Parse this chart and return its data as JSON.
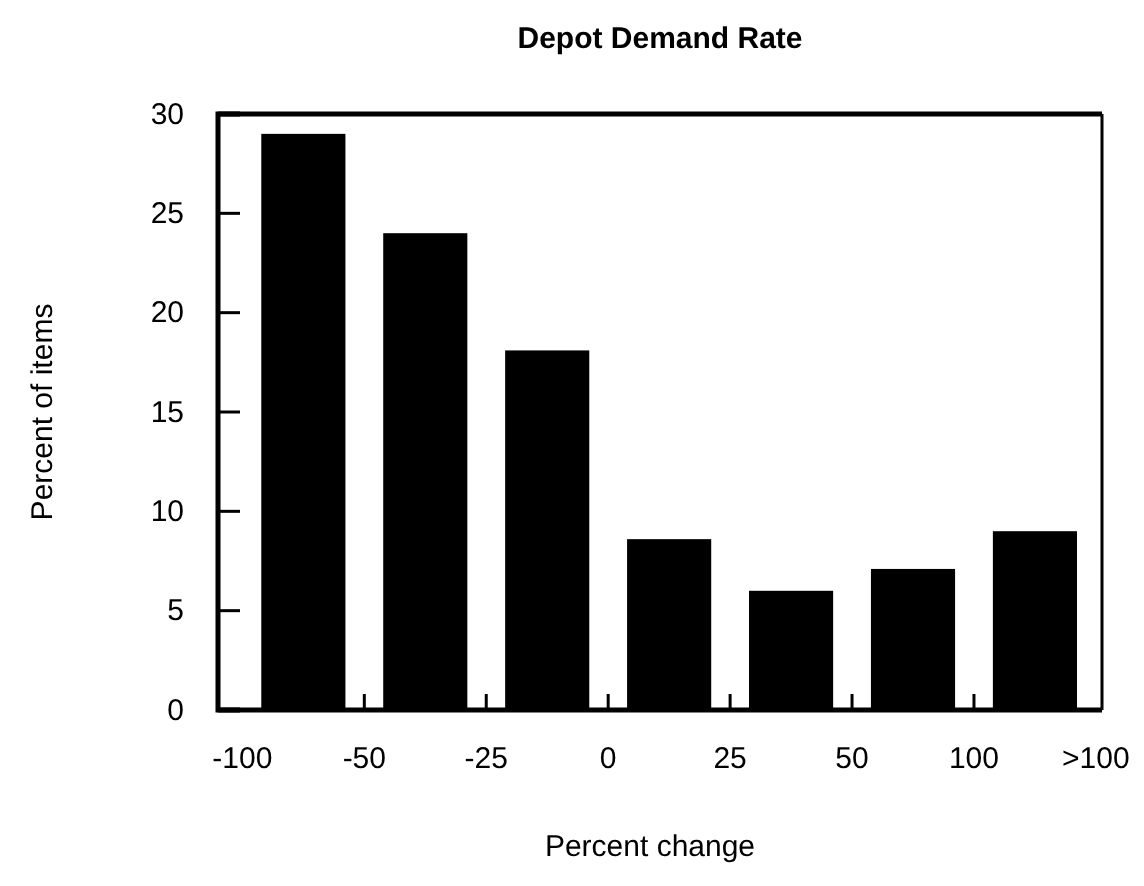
{
  "chart_data": {
    "type": "bar",
    "title": "Depot Demand Rate",
    "xlabel": "Percent change",
    "ylabel": "Percent of items",
    "categories": [
      null,
      null,
      null,
      null,
      null,
      null,
      null
    ],
    "values": [
      29,
      24,
      18.1,
      8.6,
      6,
      7.1,
      9
    ],
    "color": "#000000",
    "annotations": [
      "-100",
      "-50",
      "-25",
      "0",
      "25",
      "50",
      "100",
      ">100"
    ],
    "ylim": [
      0,
      30
    ],
    "yticks": [
      0,
      5,
      10,
      15,
      20,
      25,
      30
    ]
  }
}
